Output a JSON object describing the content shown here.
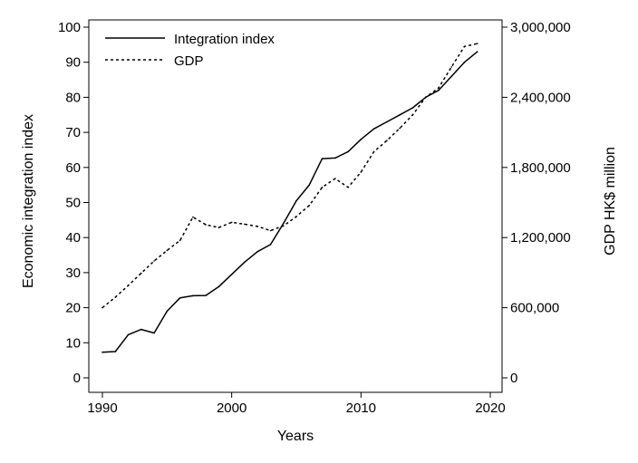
{
  "chart_data": {
    "type": "line",
    "xlabel": "Years",
    "ylabel_left": "Economic integration index",
    "ylabel_right": "GDP HK$ million",
    "xlim": [
      1990,
      2020
    ],
    "ylim_left": [
      0,
      100
    ],
    "ylim_right": [
      0,
      3000000
    ],
    "x_ticks": [
      {
        "value": 1990,
        "label": "1990"
      },
      {
        "value": 2000,
        "label": "2000"
      },
      {
        "value": 2010,
        "label": "2010"
      },
      {
        "value": 2020,
        "label": "2020"
      }
    ],
    "y_left_ticks": [
      {
        "value": 0,
        "label": "0"
      },
      {
        "value": 10,
        "label": "10"
      },
      {
        "value": 20,
        "label": "20"
      },
      {
        "value": 30,
        "label": "30"
      },
      {
        "value": 40,
        "label": "40"
      },
      {
        "value": 50,
        "label": "50"
      },
      {
        "value": 60,
        "label": "60"
      },
      {
        "value": 70,
        "label": "70"
      },
      {
        "value": 80,
        "label": "80"
      },
      {
        "value": 90,
        "label": "90"
      },
      {
        "value": 100,
        "label": "100"
      }
    ],
    "y_right_ticks": [
      {
        "value": 0,
        "label": "0"
      },
      {
        "value": 600000,
        "label": "600,000"
      },
      {
        "value": 1200000,
        "label": "1,200,000"
      },
      {
        "value": 1800000,
        "label": "1,800,000"
      },
      {
        "value": 2400000,
        "label": "2,400,000"
      },
      {
        "value": 3000000,
        "label": "3,000,000"
      }
    ],
    "grid": false,
    "legend_position": "top-left",
    "x": [
      1990,
      1991,
      1992,
      1993,
      1994,
      1995,
      1996,
      1997,
      1998,
      1999,
      2000,
      2001,
      2002,
      2003,
      2004,
      2005,
      2006,
      2007,
      2008,
      2009,
      2010,
      2011,
      2012,
      2013,
      2014,
      2015,
      2016,
      2017,
      2018,
      2019
    ],
    "series": [
      {
        "name": "Integration index",
        "axis": "left",
        "style": "solid",
        "values": [
          7.3,
          7.5,
          12.3,
          13.8,
          12.8,
          19.0,
          22.8,
          23.4,
          23.5,
          26.0,
          29.5,
          33.0,
          36.0,
          38.0,
          44.0,
          50.5,
          55.0,
          62.5,
          62.7,
          64.5,
          68.0,
          71.0,
          73.0,
          75.0,
          77.0,
          80.0,
          82.0,
          86.0,
          90.0,
          93.0
        ],
        "color": "#000000"
      },
      {
        "name": "GDP",
        "axis": "right",
        "style": "dashed",
        "values": [
          600000,
          690000,
          790000,
          895000,
          1000000,
          1090000,
          1175000,
          1375000,
          1310000,
          1285000,
          1330000,
          1315000,
          1295000,
          1260000,
          1300000,
          1380000,
          1475000,
          1630000,
          1705000,
          1630000,
          1760000,
          1935000,
          2030000,
          2135000,
          2250000,
          2400000,
          2480000,
          2660000,
          2835000,
          2860000
        ],
        "color": "#000000"
      }
    ]
  }
}
